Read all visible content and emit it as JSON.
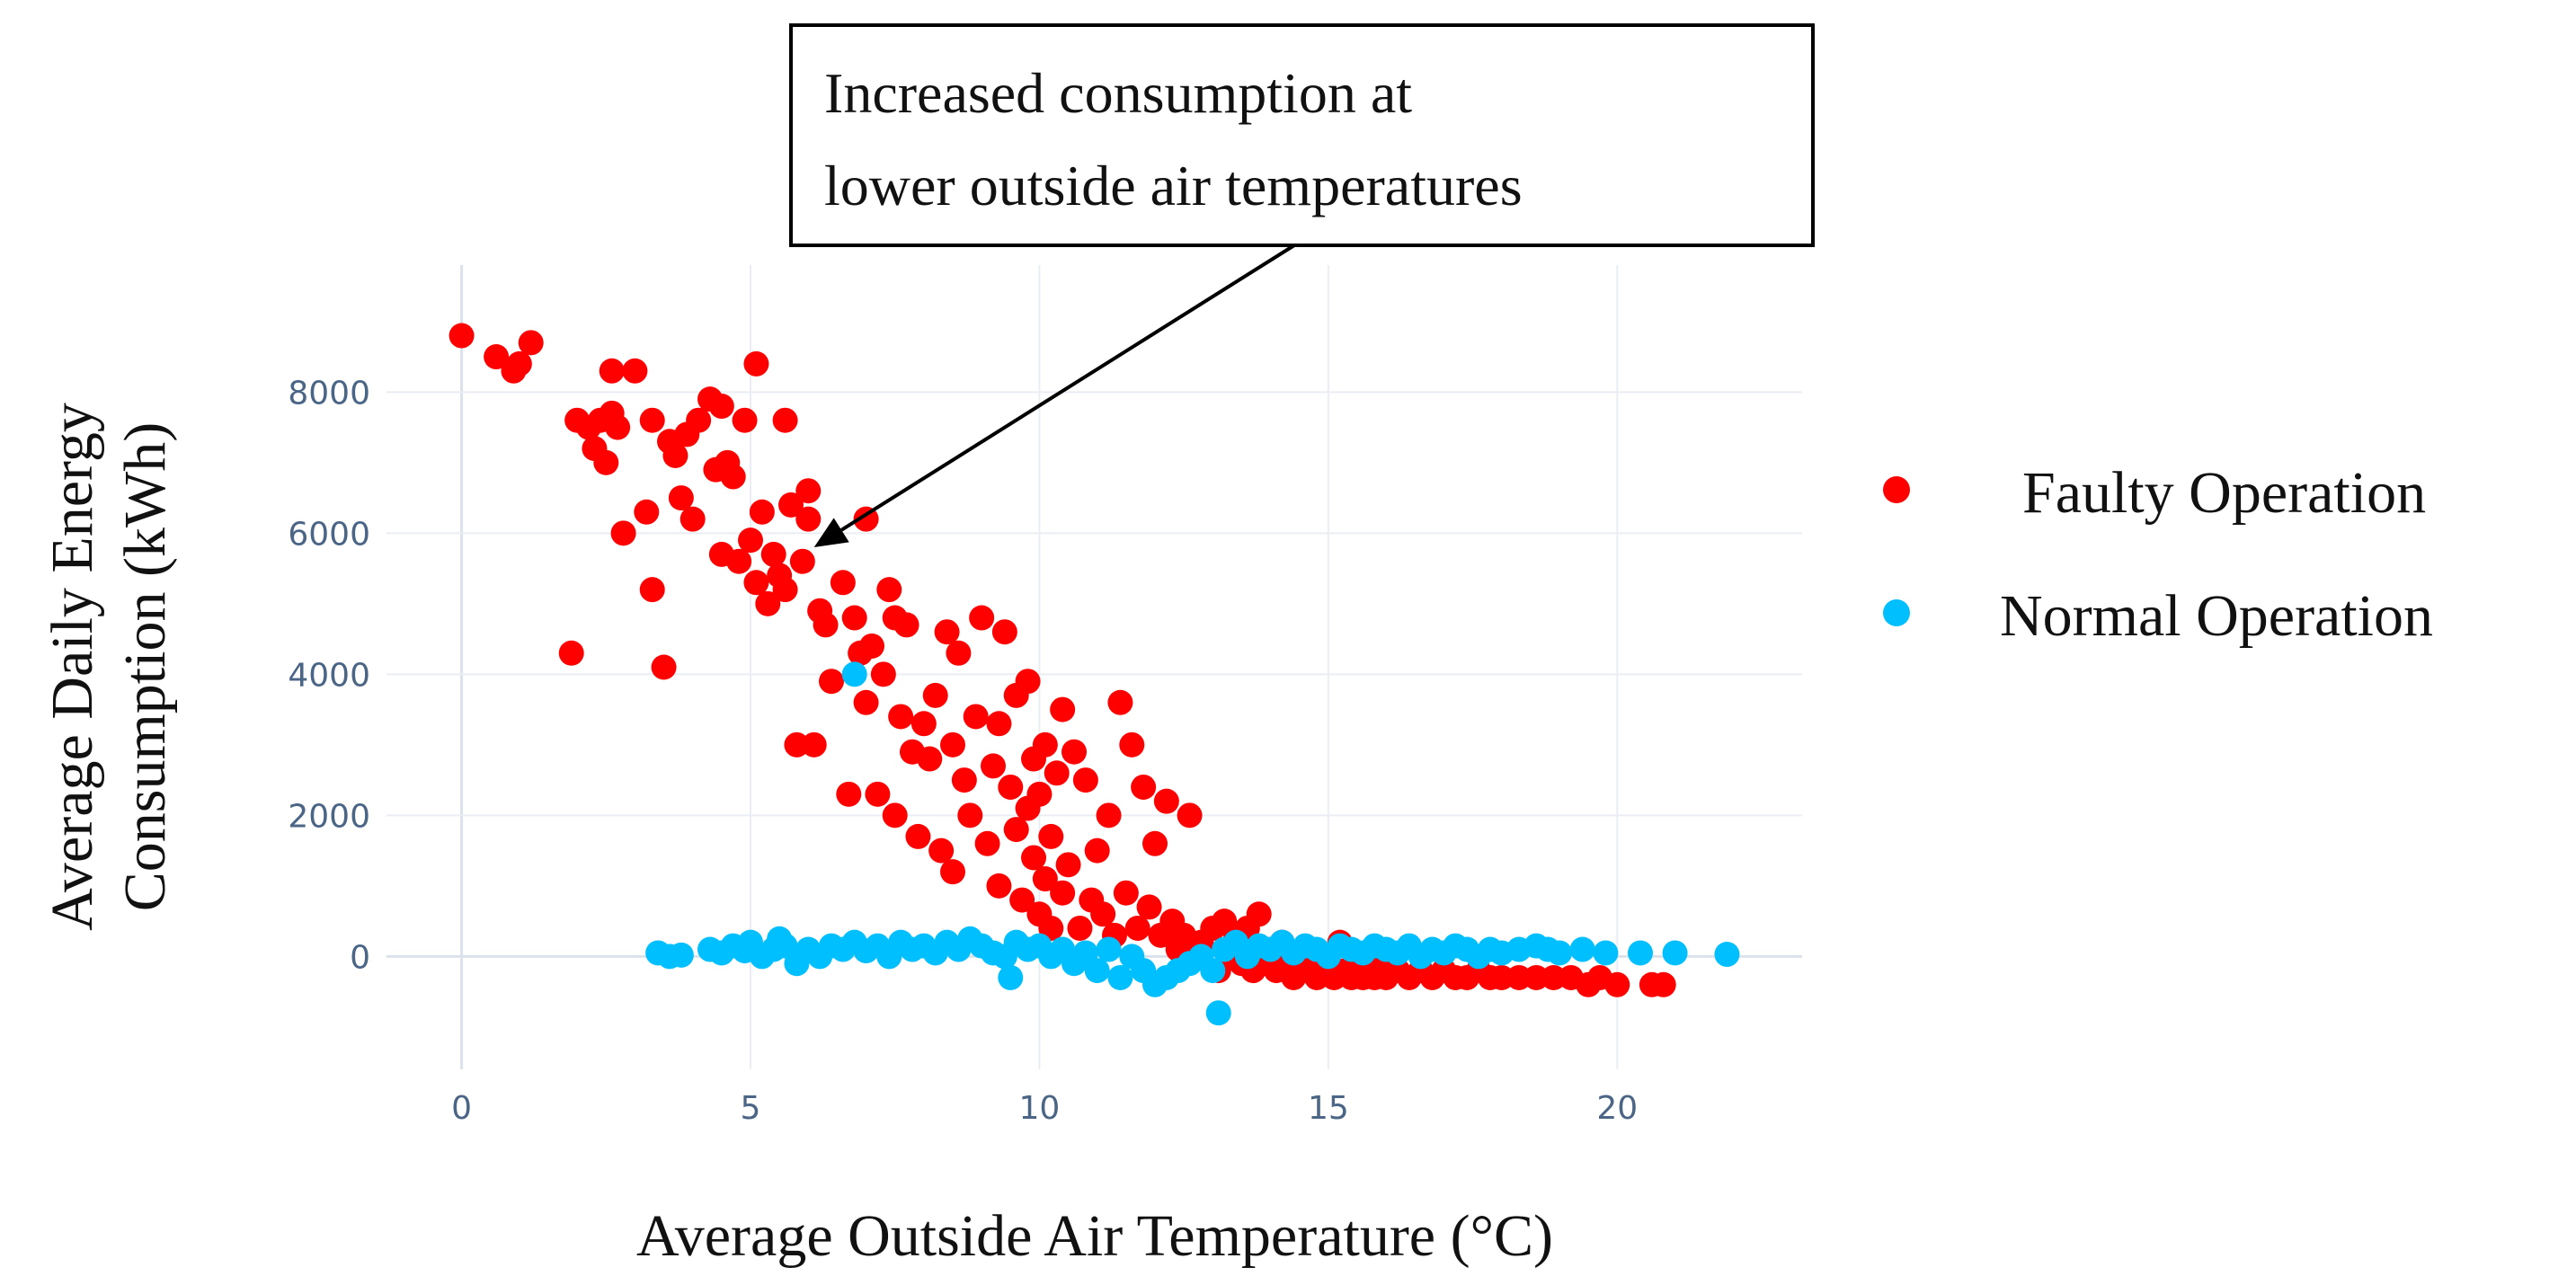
{
  "chart_data": {
    "type": "scatter",
    "title": "",
    "xlabel": "Average Outside Air Temperature (°C)",
    "ylabel_lines": [
      "Average Daily Energy",
      "Consumption (kWh)"
    ],
    "xlim": [
      -1.3,
      23.2
    ],
    "ylim": [
      -1600,
      9800
    ],
    "x_ticks": [
      0,
      5,
      10,
      15,
      20
    ],
    "y_ticks": [
      0,
      2000,
      4000,
      6000,
      8000
    ],
    "grid": true,
    "legend_position": "right",
    "annotation": {
      "lines": [
        "Increased consumption at",
        "lower outside air temperatures"
      ],
      "arrow_to": [
        6.1,
        5800
      ]
    },
    "series": [
      {
        "name": "Faulty Operation",
        "color": "#ff0000",
        "points": [
          [
            0,
            8800
          ],
          [
            0.6,
            8500
          ],
          [
            0.9,
            8300
          ],
          [
            1.0,
            8400
          ],
          [
            1.2,
            8700
          ],
          [
            1.9,
            4300
          ],
          [
            2.0,
            7600
          ],
          [
            2.2,
            7500
          ],
          [
            2.3,
            7200
          ],
          [
            2.4,
            7600
          ],
          [
            2.5,
            7000
          ],
          [
            2.6,
            7700
          ],
          [
            2.6,
            8300
          ],
          [
            2.7,
            7500
          ],
          [
            2.8,
            6000
          ],
          [
            3.0,
            8300
          ],
          [
            3.2,
            6300
          ],
          [
            3.3,
            7600
          ],
          [
            3.3,
            5200
          ],
          [
            3.5,
            4100
          ],
          [
            3.6,
            7300
          ],
          [
            3.7,
            7100
          ],
          [
            3.8,
            6500
          ],
          [
            3.9,
            7400
          ],
          [
            4.0,
            6200
          ],
          [
            4.1,
            7600
          ],
          [
            4.3,
            7900
          ],
          [
            4.4,
            6900
          ],
          [
            4.5,
            5700
          ],
          [
            4.5,
            7800
          ],
          [
            4.6,
            7000
          ],
          [
            4.7,
            6800
          ],
          [
            4.8,
            5600
          ],
          [
            4.9,
            7600
          ],
          [
            5.0,
            5900
          ],
          [
            5.1,
            8400
          ],
          [
            5.1,
            5300
          ],
          [
            5.2,
            6300
          ],
          [
            5.3,
            5000
          ],
          [
            5.4,
            5700
          ],
          [
            5.5,
            5400
          ],
          [
            5.6,
            7600
          ],
          [
            5.6,
            5200
          ],
          [
            5.7,
            6400
          ],
          [
            5.8,
            3000
          ],
          [
            5.9,
            5600
          ],
          [
            6.0,
            6200
          ],
          [
            6.0,
            6600
          ],
          [
            6.1,
            3000
          ],
          [
            6.2,
            4900
          ],
          [
            6.3,
            4700
          ],
          [
            6.4,
            3900
          ],
          [
            6.6,
            5300
          ],
          [
            6.7,
            2300
          ],
          [
            6.8,
            4800
          ],
          [
            6.9,
            4300
          ],
          [
            7.0,
            3600
          ],
          [
            7.0,
            6200
          ],
          [
            7.1,
            4400
          ],
          [
            7.2,
            2300
          ],
          [
            7.3,
            4000
          ],
          [
            7.4,
            5200
          ],
          [
            7.5,
            2000
          ],
          [
            7.5,
            4800
          ],
          [
            7.6,
            3400
          ],
          [
            7.7,
            4700
          ],
          [
            7.8,
            2900
          ],
          [
            7.9,
            1700
          ],
          [
            8.0,
            3300
          ],
          [
            8.1,
            2800
          ],
          [
            8.2,
            3700
          ],
          [
            8.3,
            1500
          ],
          [
            8.4,
            4600
          ],
          [
            8.5,
            3000
          ],
          [
            8.5,
            1200
          ],
          [
            8.6,
            4300
          ],
          [
            8.7,
            2500
          ],
          [
            8.8,
            2000
          ],
          [
            8.9,
            3400
          ],
          [
            9.0,
            4800
          ],
          [
            9.1,
            1600
          ],
          [
            9.2,
            2700
          ],
          [
            9.3,
            3300
          ],
          [
            9.3,
            1000
          ],
          [
            9.4,
            4600
          ],
          [
            9.5,
            2400
          ],
          [
            9.6,
            1800
          ],
          [
            9.6,
            3700
          ],
          [
            9.7,
            800
          ],
          [
            9.8,
            2100
          ],
          [
            9.8,
            3900
          ],
          [
            9.9,
            1400
          ],
          [
            9.9,
            2800
          ],
          [
            10.0,
            600
          ],
          [
            10.0,
            2300
          ],
          [
            10.1,
            1100
          ],
          [
            10.1,
            3000
          ],
          [
            10.2,
            1700
          ],
          [
            10.2,
            400
          ],
          [
            10.3,
            2600
          ],
          [
            10.4,
            900
          ],
          [
            10.4,
            3500
          ],
          [
            10.5,
            1300
          ],
          [
            10.6,
            2900
          ],
          [
            10.7,
            400
          ],
          [
            10.8,
            2500
          ],
          [
            10.9,
            800
          ],
          [
            11.0,
            1500
          ],
          [
            11.1,
            600
          ],
          [
            11.2,
            2000
          ],
          [
            11.3,
            300
          ],
          [
            11.4,
            3600
          ],
          [
            11.5,
            900
          ],
          [
            11.6,
            3000
          ],
          [
            11.7,
            400
          ],
          [
            11.8,
            2400
          ],
          [
            11.9,
            700
          ],
          [
            12.0,
            1600
          ],
          [
            12.1,
            300
          ],
          [
            12.2,
            2200
          ],
          [
            12.3,
            500
          ],
          [
            12.4,
            100
          ],
          [
            12.5,
            300
          ],
          [
            12.6,
            2000
          ],
          [
            12.8,
            200
          ],
          [
            13.0,
            400
          ],
          [
            13.1,
            -200
          ],
          [
            13.2,
            500
          ],
          [
            13.3,
            0
          ],
          [
            13.4,
            300
          ],
          [
            13.5,
            -100
          ],
          [
            13.6,
            400
          ],
          [
            13.7,
            -200
          ],
          [
            13.8,
            600
          ],
          [
            13.9,
            -100
          ],
          [
            14.0,
            100
          ],
          [
            14.1,
            -200
          ],
          [
            14.2,
            200
          ],
          [
            14.3,
            -100
          ],
          [
            14.4,
            -300
          ],
          [
            14.5,
            0
          ],
          [
            14.6,
            -200
          ],
          [
            14.7,
            100
          ],
          [
            14.8,
            -300
          ],
          [
            14.9,
            -200
          ],
          [
            15.0,
            -100
          ],
          [
            15.1,
            -300
          ],
          [
            15.2,
            200
          ],
          [
            15.3,
            -200
          ],
          [
            15.4,
            -300
          ],
          [
            15.5,
            -100
          ],
          [
            15.6,
            -300
          ],
          [
            15.7,
            -200
          ],
          [
            15.8,
            -300
          ],
          [
            15.9,
            -100
          ],
          [
            16.0,
            -300
          ],
          [
            16.2,
            -200
          ],
          [
            16.4,
            -300
          ],
          [
            16.6,
            -200
          ],
          [
            16.8,
            -300
          ],
          [
            17.0,
            -200
          ],
          [
            17.2,
            -300
          ],
          [
            17.4,
            -300
          ],
          [
            17.6,
            -200
          ],
          [
            17.8,
            -300
          ],
          [
            18.0,
            -300
          ],
          [
            18.3,
            -300
          ],
          [
            18.6,
            -300
          ],
          [
            18.9,
            -300
          ],
          [
            19.2,
            -300
          ],
          [
            19.5,
            -400
          ],
          [
            19.7,
            -300
          ],
          [
            20.0,
            -400
          ],
          [
            20.6,
            -400
          ],
          [
            20.8,
            -400
          ]
        ]
      },
      {
        "name": "Normal Operation",
        "color": "#00bfff",
        "points": [
          [
            6.8,
            4000
          ],
          [
            3.4,
            50
          ],
          [
            3.6,
            0
          ],
          [
            3.8,
            20
          ],
          [
            4.3,
            100
          ],
          [
            4.5,
            50
          ],
          [
            4.7,
            150
          ],
          [
            4.9,
            80
          ],
          [
            5.0,
            200
          ],
          [
            5.2,
            0
          ],
          [
            5.4,
            100
          ],
          [
            5.5,
            250
          ],
          [
            5.6,
            150
          ],
          [
            5.8,
            -100
          ],
          [
            6.0,
            100
          ],
          [
            6.2,
            0
          ],
          [
            6.4,
            150
          ],
          [
            6.6,
            100
          ],
          [
            6.8,
            200
          ],
          [
            7.0,
            80
          ],
          [
            7.2,
            150
          ],
          [
            7.4,
            0
          ],
          [
            7.6,
            200
          ],
          [
            7.8,
            100
          ],
          [
            8.0,
            150
          ],
          [
            8.2,
            50
          ],
          [
            8.4,
            200
          ],
          [
            8.6,
            100
          ],
          [
            8.8,
            250
          ],
          [
            9.0,
            150
          ],
          [
            9.2,
            50
          ],
          [
            9.4,
            0
          ],
          [
            9.5,
            -300
          ],
          [
            9.6,
            200
          ],
          [
            9.8,
            100
          ],
          [
            10.0,
            150
          ],
          [
            10.2,
            0
          ],
          [
            10.4,
            100
          ],
          [
            10.6,
            -100
          ],
          [
            10.8,
            50
          ],
          [
            11.0,
            -200
          ],
          [
            11.2,
            100
          ],
          [
            11.4,
            -300
          ],
          [
            11.6,
            0
          ],
          [
            11.8,
            -200
          ],
          [
            12.0,
            -400
          ],
          [
            12.2,
            -300
          ],
          [
            12.4,
            -200
          ],
          [
            12.6,
            -100
          ],
          [
            12.8,
            0
          ],
          [
            13.0,
            -200
          ],
          [
            13.1,
            -800
          ],
          [
            13.2,
            100
          ],
          [
            13.4,
            200
          ],
          [
            13.6,
            0
          ],
          [
            13.8,
            150
          ],
          [
            14.0,
            100
          ],
          [
            14.2,
            200
          ],
          [
            14.4,
            50
          ],
          [
            14.6,
            150
          ],
          [
            14.8,
            100
          ],
          [
            15.0,
            0
          ],
          [
            15.2,
            150
          ],
          [
            15.4,
            100
          ],
          [
            15.6,
            50
          ],
          [
            15.8,
            150
          ],
          [
            16.0,
            100
          ],
          [
            16.2,
            50
          ],
          [
            16.4,
            150
          ],
          [
            16.6,
            0
          ],
          [
            16.8,
            100
          ],
          [
            17.0,
            50
          ],
          [
            17.2,
            150
          ],
          [
            17.4,
            100
          ],
          [
            17.6,
            0
          ],
          [
            17.8,
            100
          ],
          [
            18.0,
            50
          ],
          [
            18.3,
            100
          ],
          [
            18.6,
            150
          ],
          [
            18.8,
            100
          ],
          [
            19.0,
            50
          ],
          [
            19.4,
            100
          ],
          [
            19.8,
            50
          ],
          [
            20.4,
            50
          ],
          [
            21.0,
            50
          ],
          [
            21.9,
            30
          ]
        ]
      }
    ]
  }
}
